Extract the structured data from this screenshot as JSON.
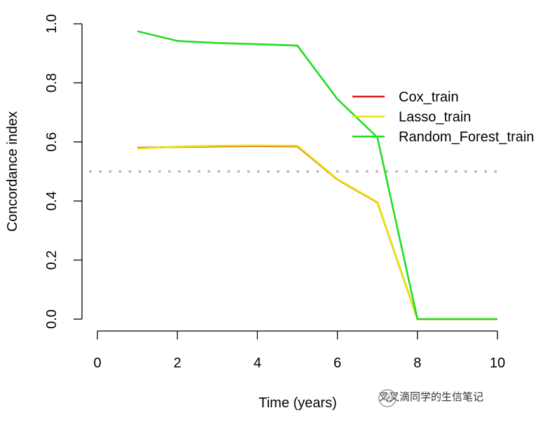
{
  "chart_data": {
    "type": "line",
    "title": "",
    "xlabel": "Time (years)",
    "ylabel": "Concordance index",
    "xlim": [
      0,
      10
    ],
    "ylim": [
      0,
      1
    ],
    "xticks": [
      "0",
      "2",
      "4",
      "6",
      "8",
      "10"
    ],
    "yticks": [
      "0.0",
      "0.2",
      "0.4",
      "0.6",
      "0.8",
      "1.0"
    ],
    "reference_line": {
      "y": 0.5,
      "style": "dotted",
      "color": "#bebebe"
    },
    "legend_position": "top-right",
    "grid": false,
    "series": [
      {
        "name": "Cox_train",
        "color": "#df1b1b",
        "x": [
          1,
          2,
          3,
          4,
          5,
          6,
          7,
          8,
          9,
          10
        ],
        "y": [
          0.58,
          0.583,
          0.585,
          0.586,
          0.585,
          0.473,
          0.395,
          0,
          0,
          0
        ]
      },
      {
        "name": "Lasso_train",
        "color": "#e6e600",
        "x": [
          1,
          2,
          3,
          4,
          5,
          6,
          7,
          8,
          9,
          10
        ],
        "y": [
          0.578,
          0.584,
          0.587,
          0.588,
          0.587,
          0.474,
          0.396,
          0,
          0,
          0
        ]
      },
      {
        "name": "Random_Forest_train",
        "color": "#22dd22",
        "x": [
          1,
          2,
          3,
          4,
          5,
          6,
          7,
          8,
          9,
          10
        ],
        "y": [
          0.975,
          0.942,
          0.935,
          0.931,
          0.926,
          0.745,
          0.615,
          0,
          0,
          0
        ]
      }
    ]
  },
  "watermark": {
    "text": "叉叉滴同学的生信笔记",
    "icon": "wechat-icon"
  }
}
